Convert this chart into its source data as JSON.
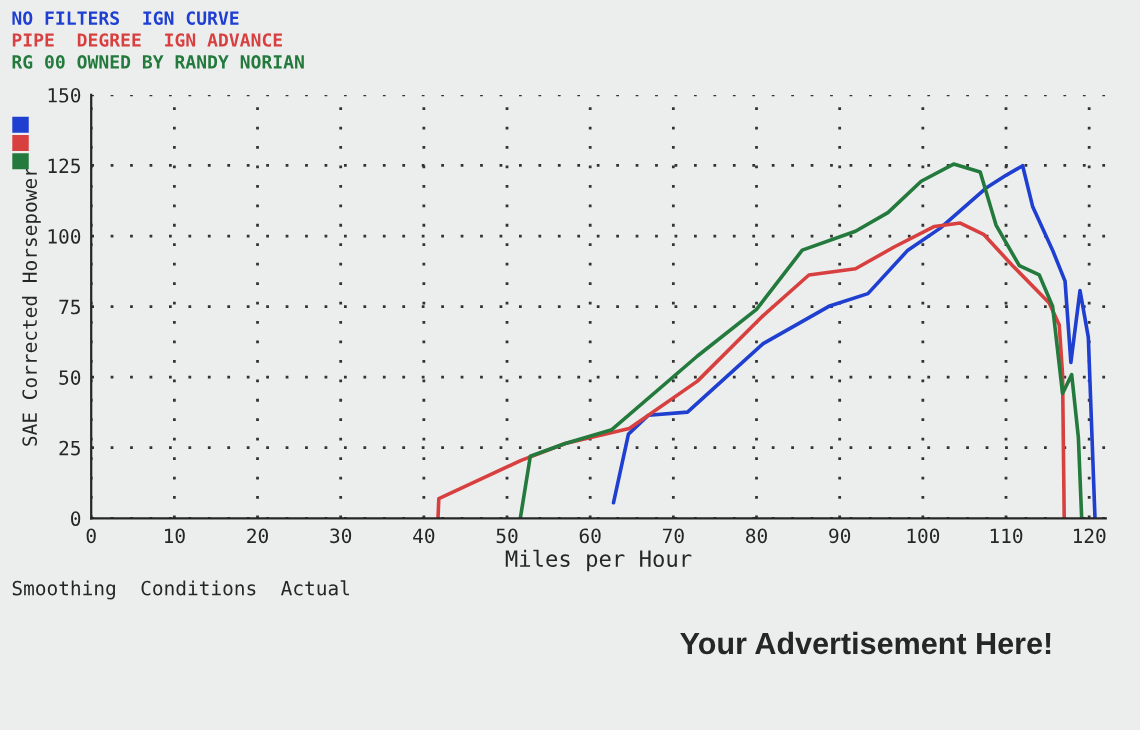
{
  "chart_data": {
    "type": "line",
    "xlabel": "Miles per Hour",
    "ylabel": "SAE Corrected Horsepower",
    "annotations": [
      "Smoothing  Conditions  Actual",
      "Your Advertisement Here!"
    ],
    "series": [
      {
        "name": "NO FILTERS  IGN CURVE",
        "color": "#1f3fd0",
        "x": [
          62.8,
          64.6,
          67,
          71.7,
          80.8,
          88.7,
          93.4,
          98.2,
          102.1,
          107.7,
          110,
          112,
          113.2,
          115.6,
          117.1,
          117.8,
          118.9,
          119.9,
          120.7
        ],
        "values": [
          5.5,
          29.8,
          36.5,
          37.6,
          61.9,
          75.1,
          79.6,
          95,
          102.8,
          117.2,
          121.5,
          124.9,
          110.5,
          95,
          84,
          55.2,
          80.7,
          64.1,
          0
        ]
      },
      {
        "name": "PIPE  DEGREE  IGN ADVANCE",
        "color": "#d84040",
        "x": [
          41.7,
          41.8,
          51.7,
          57,
          64.7,
          72.9,
          80.8,
          86.3,
          91.9,
          96.6,
          101.4,
          104.5,
          107.3,
          110.8,
          115.2,
          116.4,
          116.8,
          117
        ],
        "values": [
          0,
          7,
          20.5,
          26.5,
          31.8,
          48.6,
          71.8,
          86.2,
          88.4,
          96.2,
          103.4,
          104.6,
          100.6,
          89.5,
          76.3,
          68.5,
          51,
          0
        ]
      },
      {
        "name": "RG 00 OWNED BY RANDY NORIAN",
        "color": "#237a3c",
        "x": [
          51.6,
          52.8,
          57,
          62.6,
          72.9,
          80,
          85.5,
          91.9,
          95.8,
          99.8,
          103.7,
          106.9,
          108.8,
          111.6,
          114,
          115.6,
          116.8,
          117.9,
          118.7,
          119.1
        ],
        "values": [
          0,
          22,
          26.5,
          31.4,
          57.5,
          74,
          95,
          101.7,
          108.3,
          119.4,
          125.5,
          122.7,
          103.9,
          89.5,
          86.2,
          75.1,
          44.2,
          50.9,
          28.7,
          0
        ]
      }
    ],
    "xlim": [
      0,
      122
    ],
    "xticks": [
      0,
      10,
      20,
      30,
      40,
      50,
      60,
      70,
      80,
      90,
      100,
      110,
      120
    ],
    "ylim": [
      0,
      150
    ],
    "yticks": [
      0,
      25,
      50,
      75,
      100,
      125,
      150
    ],
    "grid": true,
    "legend": false,
    "line_style": "solid",
    "marker": "none"
  }
}
